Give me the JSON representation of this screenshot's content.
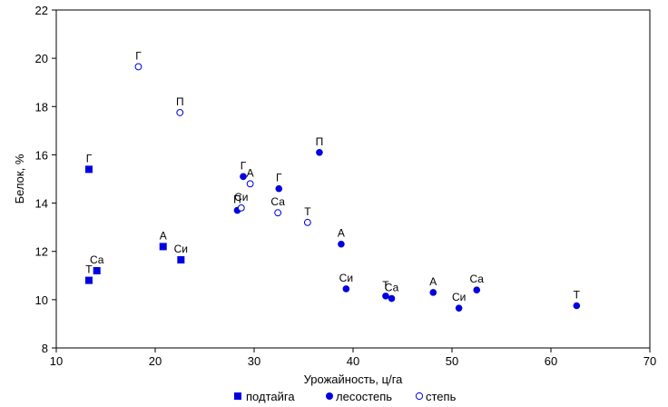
{
  "chart_data": {
    "type": "scatter",
    "title": "",
    "xlabel": "Урожайность, ц/га",
    "ylabel": "Белок, %",
    "xlim": [
      10,
      70
    ],
    "ylim": [
      8,
      22
    ],
    "xticks": [
      "10",
      "20",
      "30",
      "40",
      "50",
      "60",
      "70"
    ],
    "yticks": [
      "8",
      "10",
      "12",
      "14",
      "16",
      "18",
      "20",
      "22"
    ],
    "grid": false,
    "legend": "bottom",
    "series": [
      {
        "name": "подтайга",
        "marker": "square",
        "color": "#0000e0",
        "points": [
          {
            "x": 13.3,
            "y": 15.4,
            "label": "Г"
          },
          {
            "x": 14.1,
            "y": 11.2,
            "label": "Са"
          },
          {
            "x": 13.3,
            "y": 10.8,
            "label": "Т"
          },
          {
            "x": 20.8,
            "y": 12.2,
            "label": "А"
          },
          {
            "x": 22.6,
            "y": 11.65,
            "label": "Си"
          }
        ]
      },
      {
        "name": "лесостепь",
        "marker": "filled-circle",
        "color": "#0000e0",
        "points": [
          {
            "x": 28.9,
            "y": 15.1,
            "label": "Г"
          },
          {
            "x": 32.5,
            "y": 14.6,
            "label": "Г"
          },
          {
            "x": 28.3,
            "y": 13.7,
            "label": "П"
          },
          {
            "x": 36.6,
            "y": 16.1,
            "label": "П"
          },
          {
            "x": 38.8,
            "y": 12.3,
            "label": "А"
          },
          {
            "x": 39.3,
            "y": 10.45,
            "label": "Си"
          },
          {
            "x": 43.3,
            "y": 10.15,
            "label": "Т"
          },
          {
            "x": 43.9,
            "y": 10.05,
            "label": "Са"
          },
          {
            "x": 48.1,
            "y": 10.3,
            "label": "А"
          },
          {
            "x": 52.5,
            "y": 10.4,
            "label": "Са"
          },
          {
            "x": 50.7,
            "y": 9.65,
            "label": "Си"
          },
          {
            "x": 62.6,
            "y": 9.75,
            "label": "Т"
          }
        ]
      },
      {
        "name": "степь",
        "marker": "open-circle",
        "color": "#0000e0",
        "points": [
          {
            "x": 18.3,
            "y": 19.65,
            "label": "Г"
          },
          {
            "x": 22.5,
            "y": 17.75,
            "label": "П"
          },
          {
            "x": 29.6,
            "y": 14.8,
            "label": "А"
          },
          {
            "x": 28.7,
            "y": 13.8,
            "label": "Си"
          },
          {
            "x": 32.4,
            "y": 13.6,
            "label": "Са"
          },
          {
            "x": 35.4,
            "y": 13.2,
            "label": "Т"
          }
        ]
      }
    ]
  }
}
